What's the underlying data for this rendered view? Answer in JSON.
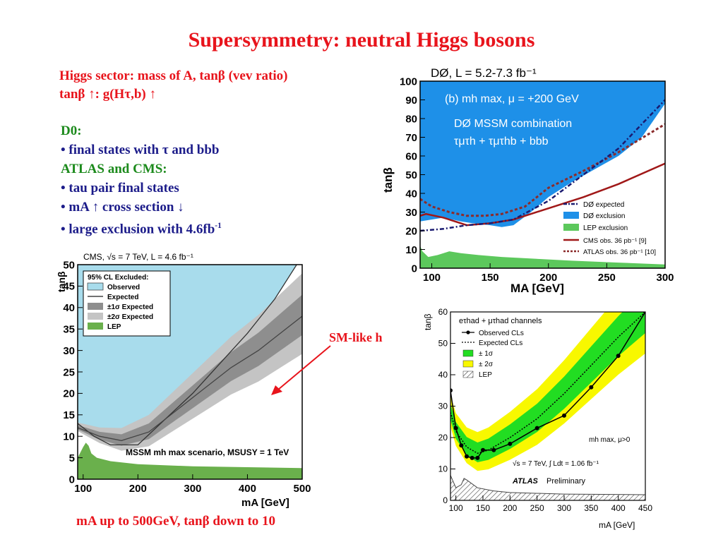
{
  "slide": {
    "title": "Supersymmetry: neutral Higgs bosons",
    "intro_line1": "Higgs sector: mass of A, tanβ (vev ratio)",
    "intro_line2": "tanβ ↑: g(Hτ,b) ↑",
    "d0_heading": "D0:",
    "d0_bullet": "• final states with τ and bbb",
    "lhc_heading": "ATLAS and CMS:",
    "lhc_bullet1": "• tau pair final states",
    "lhc_bullet2": "• mA ↑ cross section ↓",
    "lhc_bullet3_main": "• large exclusion with 4.6fb",
    "lhc_bullet3_sup": "-1",
    "annotation": "SM-like h",
    "caption": "mA up to 500GeV, tanβ down to 10"
  },
  "colors": {
    "title_red": "#e8141c",
    "text_green": "#1c8a1c",
    "text_blue": "#1c1c8a",
    "d0_blue": "#1e90e8",
    "cms_lightblue": "#a8dcec",
    "lep_green": "#5cc85c",
    "band_green": "#22dd22",
    "band_yellow": "#f8f800"
  },
  "chart_data": [
    {
      "id": "d0",
      "type": "area",
      "title": "DØ, L = 5.2-7.3 fb⁻¹",
      "panel_text": [
        "(b) mh max, μ = +200 GeV",
        "DØ MSSM combination",
        "τμτh + τμτhb + bbb"
      ],
      "xlabel": "MA [GeV]",
      "ylabel": "tanβ",
      "xlim": [
        90,
        300
      ],
      "ylim": [
        0,
        100
      ],
      "xticks": [
        100,
        150,
        200,
        250,
        300
      ],
      "yticks": [
        0,
        10,
        20,
        30,
        40,
        50,
        60,
        70,
        80,
        90,
        100
      ],
      "legend": [
        "DØ expected",
        "DØ exclusion",
        "LEP exclusion",
        "CMS   obs. 36 pb⁻¹ [9]",
        "ATLAS obs. 36 pb⁻¹ [10]"
      ],
      "legend_position": "bottom-right",
      "series": [
        {
          "name": "DØ exclusion",
          "x": [
            90,
            110,
            125,
            135,
            150,
            160,
            170,
            185,
            200,
            220,
            240,
            260,
            280,
            300
          ],
          "y": [
            25,
            27,
            25,
            24,
            23,
            22,
            23,
            30,
            38,
            46,
            53,
            60,
            70,
            88
          ]
        },
        {
          "name": "DØ expected",
          "x": [
            90,
            110,
            130,
            150,
            170,
            200,
            230,
            260,
            300
          ],
          "y": [
            20,
            21,
            23,
            24,
            26,
            36,
            50,
            64,
            90
          ]
        },
        {
          "name": "CMS   obs. 36 pb⁻¹ [9]",
          "x": [
            90,
            95,
            110,
            130,
            150,
            170,
            200,
            230,
            260,
            300
          ],
          "y": [
            28,
            29,
            27,
            23,
            24,
            26,
            32,
            38,
            45,
            56
          ]
        },
        {
          "name": "ATLAS obs. 36 pb⁻¹ [10]",
          "x": [
            90,
            100,
            115,
            130,
            145,
            160,
            180,
            200,
            230,
            260,
            300
          ],
          "y": [
            37,
            33,
            30,
            28,
            28,
            29,
            33,
            43,
            52,
            62,
            77
          ]
        },
        {
          "name": "LEP exclusion",
          "x": [
            90,
            92,
            97,
            105,
            115,
            125,
            140,
            160,
            190,
            220,
            260,
            300
          ],
          "y": [
            12,
            9,
            6,
            7,
            9,
            8,
            7,
            6,
            5,
            4,
            3,
            2
          ]
        }
      ]
    },
    {
      "id": "cms",
      "type": "area",
      "title": "CMS, √s = 7 TeV, L = 4.6 fb⁻¹",
      "panel_text": [
        "MSSM mh max scenario, MSUSY = 1 TeV"
      ],
      "xlabel": "mA [GeV]",
      "ylabel": "tanβ",
      "xlim": [
        90,
        500
      ],
      "ylim": [
        0,
        50
      ],
      "xticks": [
        100,
        200,
        300,
        400,
        500
      ],
      "yticks": [
        0,
        5,
        10,
        15,
        20,
        25,
        30,
        35,
        40,
        45,
        50
      ],
      "legend_title": "95% CL Excluded:",
      "legend": [
        "Observed",
        "Expected",
        "±1σ Expected",
        "±2σ Expected",
        "LEP"
      ],
      "legend_position": "top-left",
      "series": [
        {
          "name": "Observed",
          "x": [
            90,
            120,
            150,
            200,
            250,
            300,
            350,
            400,
            450,
            490
          ],
          "y": [
            13,
            10,
            8,
            8,
            14,
            20,
            27,
            34,
            42,
            50
          ]
        },
        {
          "name": "Expected",
          "x": [
            90,
            130,
            170,
            220,
            270,
            320,
            370,
            420,
            470,
            500
          ],
          "y": [
            12,
            10,
            9,
            11,
            16,
            21,
            26,
            30,
            35,
            38
          ]
        },
        {
          "name": "LEP",
          "x": [
            90,
            100,
            105,
            110,
            115,
            125,
            150,
            200,
            300,
            400,
            500
          ],
          "y": [
            5,
            7.5,
            8.5,
            7.8,
            6,
            5,
            4.2,
            3.5,
            3,
            2.8,
            2.6
          ]
        }
      ]
    },
    {
      "id": "atlas",
      "type": "line",
      "title": "eτhad + μτhad channels",
      "panel_text": [
        "mh max, μ>0",
        "√s = 7 TeV, ∫ Ldt = 1.06 fb⁻¹",
        "ATLAS",
        "Preliminary"
      ],
      "xlabel": "mA [GeV]",
      "ylabel": "tanβ",
      "xlim": [
        90,
        450
      ],
      "ylim": [
        0,
        60
      ],
      "xticks": [
        100,
        150,
        200,
        250,
        300,
        350,
        400,
        450
      ],
      "yticks": [
        0,
        10,
        20,
        30,
        40,
        50,
        60
      ],
      "legend": [
        "Observed CLs",
        "Expected CLs",
        "± 1σ",
        "± 2σ",
        "LEP"
      ],
      "legend_position": "top-left",
      "series": [
        {
          "name": "Observed CLs",
          "x": [
            90,
            100,
            110,
            120,
            130,
            140,
            150,
            170,
            200,
            250,
            300,
            350,
            400,
            450
          ],
          "y": [
            35,
            23,
            17.5,
            14,
            13.5,
            13.5,
            16,
            16,
            18,
            23,
            27,
            36,
            46,
            60
          ]
        },
        {
          "name": "Expected CLs",
          "x": [
            90,
            100,
            120,
            140,
            160,
            200,
            250,
            300,
            350,
            400,
            450
          ],
          "y": [
            28,
            22,
            17,
            15,
            16,
            20,
            26,
            34,
            43,
            52,
            60
          ]
        },
        {
          "name": "LEP",
          "x": [
            90,
            100,
            110,
            115,
            120,
            140,
            170,
            200,
            300,
            450
          ],
          "y": [
            8,
            4,
            5,
            7,
            6.5,
            4,
            3,
            2.5,
            2,
            1.8
          ]
        }
      ]
    }
  ]
}
